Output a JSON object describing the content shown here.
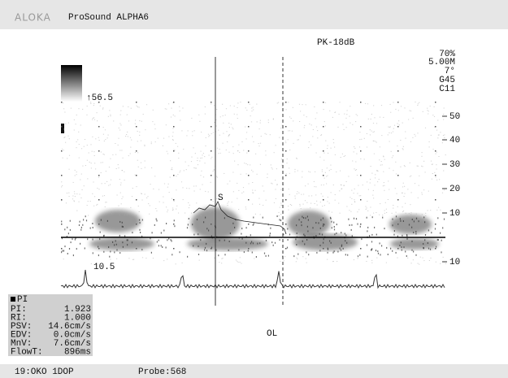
{
  "header": {
    "brand": "ALOKA",
    "model": "ProSound ALPHA6"
  },
  "display": {
    "power": "PK-18dB",
    "params": [
      "70%",
      "5.00M",
      "7°",
      "G45",
      "C11"
    ],
    "scale_top": "↑56.5",
    "scale_bottom": "10.5",
    "velocity_scale": [
      "50",
      "40",
      "30",
      "20",
      "10",
      "10"
    ],
    "peak_marker": "S",
    "label": "OL"
  },
  "measurements": {
    "title": "PI",
    "rows": [
      [
        "PI:",
        "1.923"
      ],
      [
        "RI:",
        "1.000"
      ],
      [
        "PSV:",
        "14.6cm/s"
      ],
      [
        "EDV:",
        "0.0cm/s"
      ],
      [
        "MnV:",
        "7.6cm/s"
      ],
      [
        "FlowT:",
        "896ms"
      ]
    ]
  },
  "footer": {
    "study": "19:OKO 1DOP",
    "probe": "Probe:568"
  }
}
